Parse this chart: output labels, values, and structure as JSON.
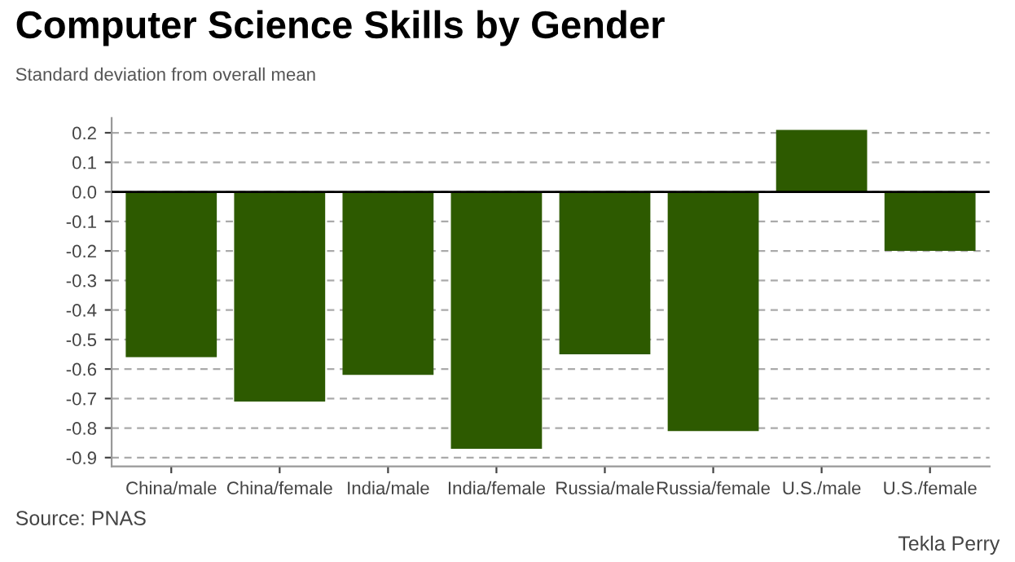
{
  "chart_data": {
    "type": "bar",
    "title": "Computer Science Skills by Gender",
    "subtitle": "Standard deviation from overall mean",
    "categories": [
      "China/male",
      "China/female",
      "India/male",
      "India/female",
      "Russia/male",
      "Russia/female",
      "U.S./male",
      "U.S./female"
    ],
    "values": [
      -0.56,
      -0.71,
      -0.62,
      -0.87,
      -0.55,
      -0.81,
      0.21,
      -0.2
    ],
    "color": "#2d5a00",
    "ylim": [
      -0.93,
      0.25
    ],
    "yticks": [
      -0.9,
      -0.8,
      -0.7,
      -0.6,
      -0.5,
      -0.4,
      -0.3,
      -0.2,
      -0.1,
      {
        "value": 0,
        "label": "0.0"
      },
      0.1,
      0.2
    ],
    "grid": "y",
    "ref_lines": [
      {
        "axis": "y",
        "value": 0,
        "color": "#000000"
      }
    ],
    "annotations": [
      "Source: PNAS",
      "Tekla Perry"
    ]
  }
}
